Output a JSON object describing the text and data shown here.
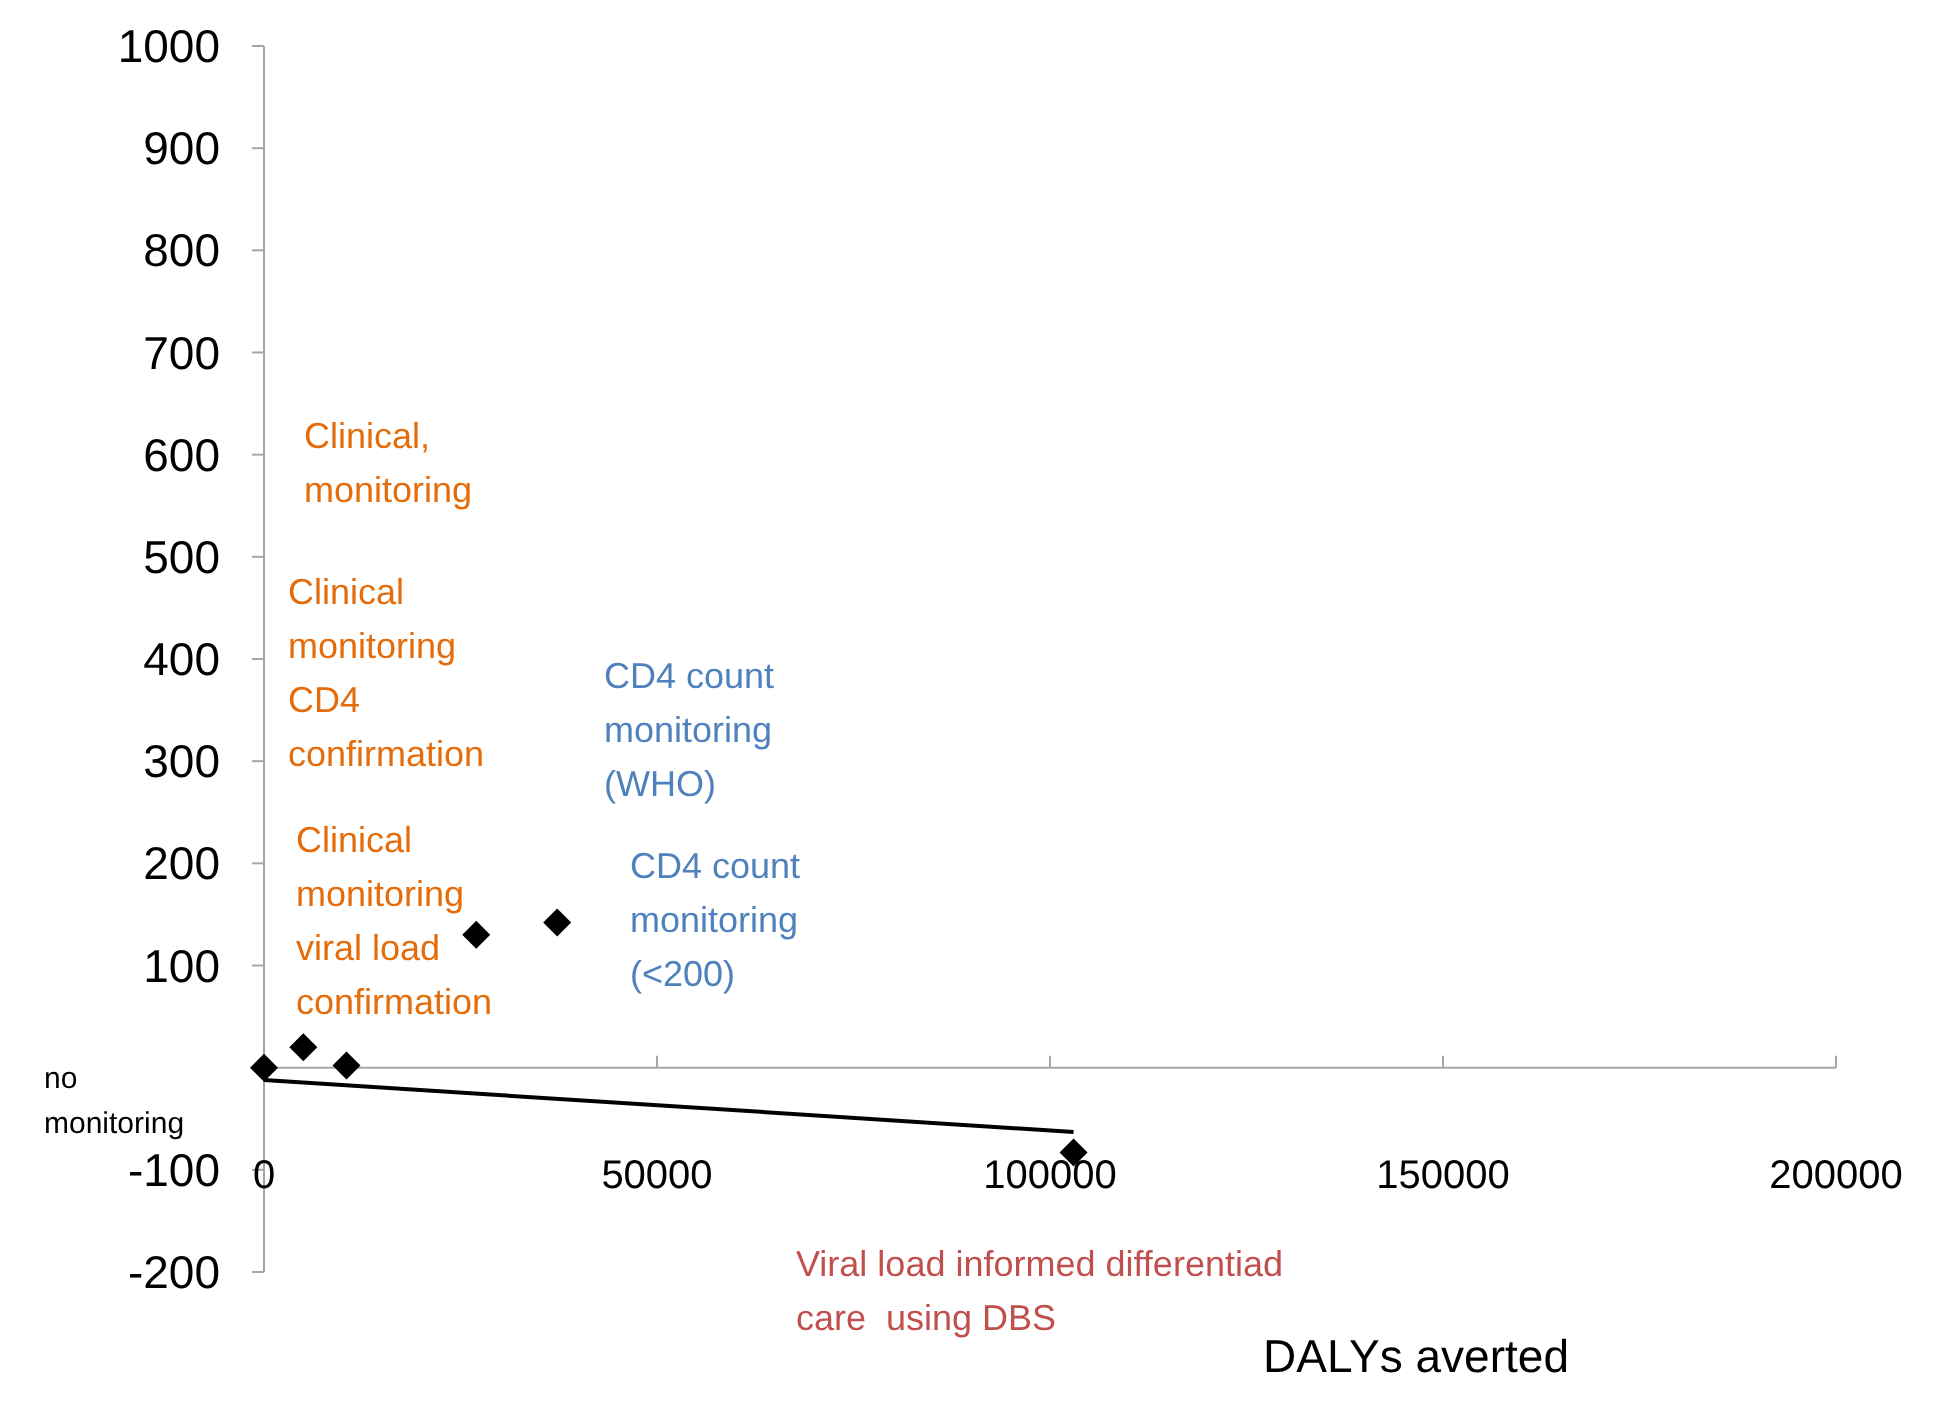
{
  "chart_data": {
    "type": "scatter",
    "xlabel": "DALYs averted",
    "xlim": [
      0,
      200000
    ],
    "xticks": [
      0,
      50000,
      100000,
      150000,
      200000
    ],
    "ylim": [
      -200,
      1000
    ],
    "yticks": [
      -200,
      -100,
      {
        "value": 0,
        "label": null
      },
      100,
      200,
      300,
      400,
      500,
      600,
      700,
      800,
      900,
      1000
    ],
    "grid": false,
    "marker": "diamond",
    "series": [
      {
        "color": "#000000",
        "x": [
          0,
          5000,
          10500,
          27000,
          37300,
          103000
        ],
        "values": [
          0,
          20,
          2,
          130,
          142,
          -83
        ]
      },
      {
        "type": "line",
        "color": "#000000",
        "marker": "none",
        "line_style": "solid",
        "x": [
          0,
          103000
        ],
        "values": [
          -12,
          -63
        ]
      }
    ],
    "annotations": [
      "no\nmonitoring",
      "Clinical,\nmonitoring",
      "Clinical\nmonitoring\nCD4\nconfirmation",
      "Clinical\nmonitoring\nviral load\nconfirmation",
      "CD4 count\nmonitoring\n(WHO)",
      "CD4 count\nmonitoring\n(<200)",
      "Viral load informed differentiad\ncare  using DBS"
    ]
  }
}
